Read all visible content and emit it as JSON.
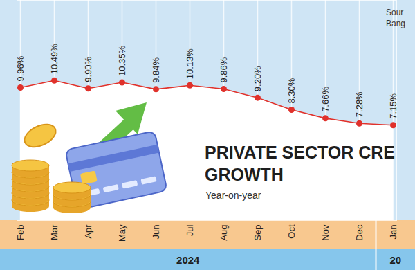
{
  "chart_data": {
    "type": "line",
    "title": "PRIVATE SECTOR CRE\nGROWTH",
    "subtitle": "Year-on-year",
    "source": "Sour\nBang",
    "categories": [
      "Feb",
      "Mar",
      "Apr",
      "May",
      "Jun",
      "Jul",
      "Aug",
      "Sep",
      "Oct",
      "Nov",
      "Dec",
      "Jan"
    ],
    "values": [
      9.96,
      10.49,
      9.9,
      10.35,
      9.84,
      10.13,
      9.86,
      9.2,
      8.3,
      7.66,
      7.28,
      7.15
    ],
    "value_labels": [
      "9.96%",
      "10.49%",
      "9.90%",
      "10.35%",
      "9.84%",
      "10.13%",
      "9.86%",
      "9.20%",
      "8.30%",
      "7.66%",
      "7.28%",
      "7.15%"
    ],
    "x_groups": [
      {
        "label": "2024",
        "categories": [
          "Feb",
          "Mar",
          "Apr",
          "May",
          "Jun",
          "Jul",
          "Aug",
          "Sep",
          "Oct",
          "Nov",
          "Dec"
        ]
      },
      {
        "label": "20",
        "categories": [
          "Jan"
        ]
      }
    ],
    "color": "#e0312b",
    "marker": "circle",
    "data_labels": true,
    "grid": true,
    "tick_labels": "x",
    "ylim": [
      0,
      16.5
    ],
    "yticks": []
  }
}
